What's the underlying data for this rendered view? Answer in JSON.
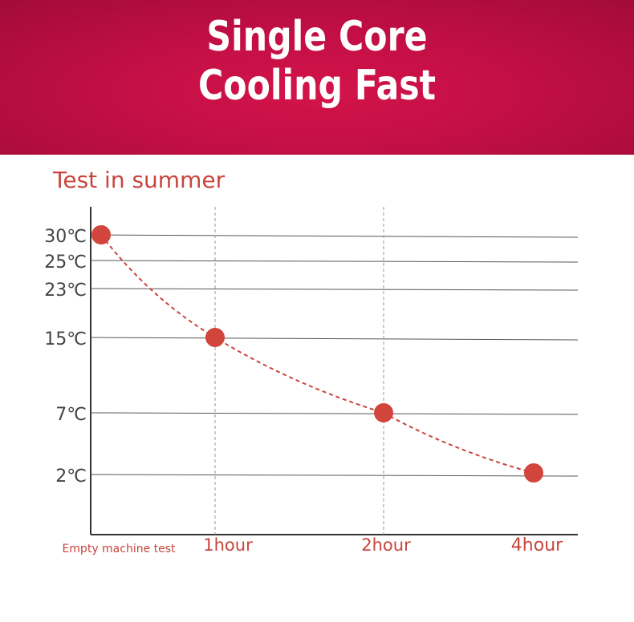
{
  "banner": {
    "title_line1": "Single Core",
    "title_line2": "Cooling Fast"
  },
  "colors": {
    "banner_bg": "#c20f45",
    "accent_text": "#c8453d",
    "point_fill": "#d2453c",
    "line": "#c8453d",
    "grid": "#555555"
  },
  "chart_data": {
    "type": "line",
    "title": "Test in summer",
    "y_tick_labels": [
      "30℃",
      "25℃",
      "23℃",
      "15℃",
      "7℃",
      "2℃"
    ],
    "x_tick_labels": [
      "Empty machine test",
      "1hour",
      "2hour",
      "4hour"
    ],
    "series": [
      {
        "values": [
          30,
          15,
          7,
          2
        ]
      }
    ],
    "line_style": "dashed",
    "grid": true
  }
}
